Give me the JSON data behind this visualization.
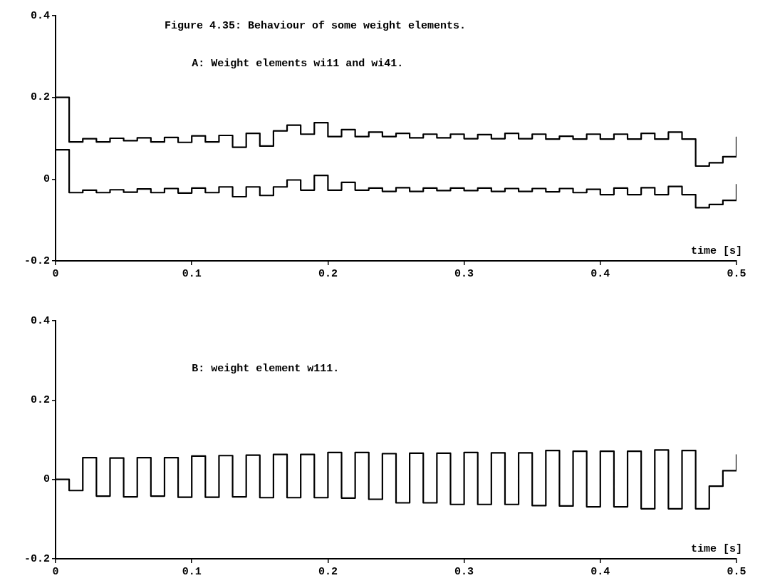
{
  "chart_data": [
    {
      "type": "step",
      "title": "Figure 4.35: Behaviour of some weight elements.",
      "subtitle": "A: Weight elements wi11 and wi41.",
      "xlabel": "time [s]",
      "x": [
        0,
        0.01,
        0.02,
        0.03,
        0.04,
        0.05,
        0.06,
        0.07,
        0.08,
        0.09,
        0.1,
        0.11,
        0.12,
        0.13,
        0.14,
        0.15,
        0.16,
        0.17,
        0.18,
        0.19,
        0.2,
        0.21,
        0.22,
        0.23,
        0.24,
        0.25,
        0.26,
        0.27,
        0.28,
        0.29,
        0.3,
        0.31,
        0.32,
        0.33,
        0.34,
        0.35,
        0.36,
        0.37,
        0.38,
        0.39,
        0.4,
        0.41,
        0.42,
        0.43,
        0.44,
        0.45,
        0.46,
        0.47,
        0.48,
        0.49,
        0.5
      ],
      "series": [
        {
          "color": "#000000",
          "values": [
            0.2,
            0.091,
            0.099,
            0.091,
            0.1,
            0.094,
            0.101,
            0.091,
            0.102,
            0.09,
            0.106,
            0.091,
            0.107,
            0.078,
            0.112,
            0.081,
            0.118,
            0.132,
            0.11,
            0.138,
            0.104,
            0.121,
            0.104,
            0.115,
            0.104,
            0.112,
            0.101,
            0.11,
            0.101,
            0.11,
            0.099,
            0.109,
            0.099,
            0.112,
            0.099,
            0.11,
            0.098,
            0.105,
            0.098,
            0.11,
            0.098,
            0.11,
            0.098,
            0.112,
            0.098,
            0.115,
            0.098,
            0.032,
            0.04,
            0.055,
            0.104
          ]
        },
        {
          "color": "#000000",
          "values": [
            0.072,
            -0.033,
            -0.027,
            -0.033,
            -0.026,
            -0.032,
            -0.024,
            -0.033,
            -0.023,
            -0.034,
            -0.022,
            -0.033,
            -0.019,
            -0.043,
            -0.019,
            -0.04,
            -0.019,
            -0.002,
            -0.027,
            0.009,
            -0.027,
            -0.008,
            -0.027,
            -0.022,
            -0.03,
            -0.021,
            -0.03,
            -0.022,
            -0.028,
            -0.022,
            -0.028,
            -0.022,
            -0.03,
            -0.023,
            -0.03,
            -0.023,
            -0.031,
            -0.023,
            -0.033,
            -0.025,
            -0.038,
            -0.022,
            -0.038,
            -0.021,
            -0.038,
            -0.018,
            -0.038,
            -0.07,
            -0.062,
            -0.052,
            -0.012
          ]
        }
      ],
      "xlim": [
        0,
        0.5
      ],
      "xticks": [
        0,
        0.1,
        0.2,
        0.3,
        0.4,
        0.5
      ],
      "ylim": [
        -0.2,
        0.4
      ],
      "yticks": [
        -0.2,
        0,
        0.2,
        0.4
      ],
      "grid": false,
      "legend": false,
      "marker": "none",
      "line_style": "solid"
    },
    {
      "type": "step",
      "title": "B: weight element w111.",
      "xlabel": "time [s]",
      "x": [
        0,
        0.01,
        0.02,
        0.03,
        0.04,
        0.05,
        0.06,
        0.07,
        0.08,
        0.09,
        0.1,
        0.11,
        0.12,
        0.13,
        0.14,
        0.15,
        0.16,
        0.17,
        0.18,
        0.19,
        0.2,
        0.21,
        0.22,
        0.23,
        0.24,
        0.25,
        0.26,
        0.27,
        0.28,
        0.29,
        0.3,
        0.31,
        0.32,
        0.33,
        0.34,
        0.35,
        0.36,
        0.37,
        0.38,
        0.39,
        0.4,
        0.41,
        0.42,
        0.43,
        0.44,
        0.45,
        0.46,
        0.47,
        0.48,
        0.49,
        0.5
      ],
      "series": [
        {
          "color": "#000000",
          "values": [
            0,
            -0.028,
            0.055,
            -0.042,
            0.054,
            -0.044,
            0.055,
            -0.042,
            0.055,
            -0.045,
            0.059,
            -0.045,
            0.06,
            -0.044,
            0.061,
            -0.046,
            0.063,
            -0.046,
            0.063,
            -0.046,
            0.068,
            -0.047,
            0.068,
            -0.05,
            0.065,
            -0.059,
            0.066,
            -0.059,
            0.066,
            -0.063,
            0.068,
            -0.063,
            0.067,
            -0.063,
            0.067,
            -0.066,
            0.073,
            -0.067,
            0.071,
            -0.069,
            0.071,
            -0.069,
            0.071,
            -0.074,
            0.074,
            -0.074,
            0.073,
            -0.074,
            -0.017,
            0.022,
            0.063
          ]
        }
      ],
      "xlim": [
        0,
        0.5
      ],
      "xticks": [
        0,
        0.1,
        0.2,
        0.3,
        0.4,
        0.5
      ],
      "ylim": [
        -0.2,
        0.4
      ],
      "yticks": [
        -0.2,
        0,
        0.2,
        0.4
      ],
      "grid": false,
      "legend": false,
      "marker": "none",
      "line_style": "solid"
    }
  ]
}
